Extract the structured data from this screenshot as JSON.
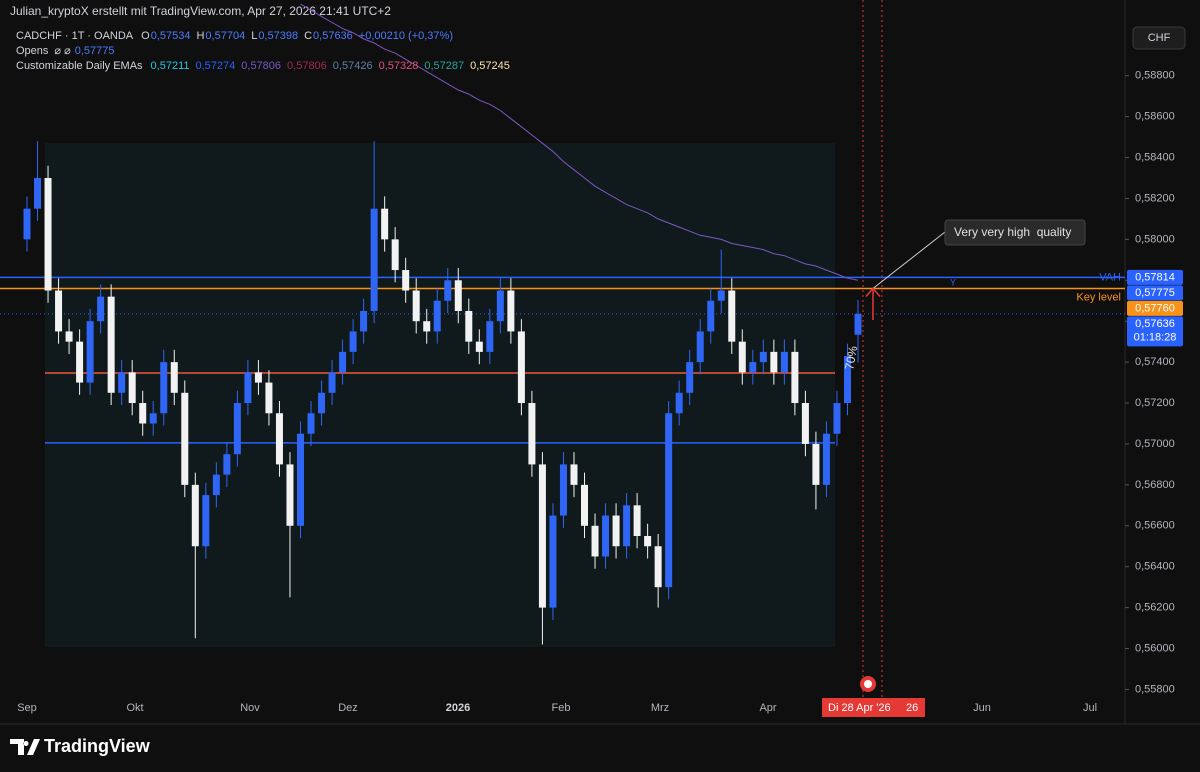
{
  "chart_data": {
    "type": "candlestick",
    "attribution": "Julian_kryptoX erstellt mit TradingView.com, Apr 27, 2026 21:41 UTC+2",
    "title": "CADCHF · 1T · OANDA",
    "ohlc_legend": [
      {
        "name": "O",
        "value": 0.57534,
        "label": "0,57534"
      },
      {
        "name": "H",
        "value": 0.57704,
        "label": "0,57704"
      },
      {
        "name": "L",
        "value": 0.57398,
        "label": "0,57398"
      },
      {
        "name": "C",
        "value": 0.57636,
        "label": "0,57636"
      }
    ],
    "change_label": "+0,00210 (+0,37%)",
    "opens_legend": {
      "name": "Opens",
      "symbol": "⌀ ⌀",
      "value": 0.57775,
      "label": "0,57775"
    },
    "ema_legend": {
      "name": "Customizable Daily EMAs",
      "items": [
        {
          "value": 0.57211,
          "label": "0,57211",
          "color": "#26c6da"
        },
        {
          "value": 0.57274,
          "label": "0,57274",
          "color": "#2962ff"
        },
        {
          "value": 0.57806,
          "label": "0,57806",
          "color": "#7e57c2"
        },
        {
          "value": 0.57806,
          "label": "0,57806",
          "color": "#a0284f"
        },
        {
          "value": 0.57426,
          "label": "0,57426",
          "color": "#5f7fa8"
        },
        {
          "value": 0.57328,
          "label": "0,57328",
          "color": "#e0557a"
        },
        {
          "value": 0.57287,
          "label": "0,57287",
          "color": "#26a69a"
        },
        {
          "value": 0.57245,
          "label": "0,57245",
          "color": "#ffe0b2"
        }
      ]
    },
    "currency_button": "CHF",
    "up_color": "#2f66f5",
    "down_color": "#f2f2f2",
    "open": [
      0.58,
      0.5815,
      0.583,
      0.5775,
      0.5755,
      0.575,
      0.573,
      0.576,
      0.5772,
      0.5725,
      0.5735,
      0.572,
      0.571,
      0.5715,
      0.574,
      0.5725,
      0.568,
      0.565,
      0.5675,
      0.5685,
      0.5695,
      0.572,
      0.5735,
      0.573,
      0.5715,
      0.569,
      0.566,
      0.5705,
      0.5715,
      0.5725,
      0.5735,
      0.5745,
      0.5755,
      0.5765,
      0.5815,
      0.58,
      0.5785,
      0.5775,
      0.576,
      0.5755,
      0.577,
      0.578,
      0.5765,
      0.575,
      0.5745,
      0.576,
      0.5775,
      0.5755,
      0.572,
      0.569,
      0.562,
      0.5665,
      0.569,
      0.568,
      0.566,
      0.5645,
      0.5665,
      0.565,
      0.567,
      0.5655,
      0.565,
      0.563,
      0.5715,
      0.5725,
      0.574,
      0.5755,
      0.577,
      0.5775,
      0.575,
      0.5735,
      0.574,
      0.5745,
      0.5735,
      0.5745,
      0.572,
      0.57,
      0.568,
      0.5705,
      0.572,
      0.57534
    ],
    "high": [
      0.5821,
      0.5848,
      0.5836,
      0.5781,
      0.5761,
      0.5756,
      0.5766,
      0.5778,
      0.5778,
      0.5741,
      0.5741,
      0.5726,
      0.5721,
      0.5746,
      0.5746,
      0.5731,
      0.5686,
      0.5681,
      0.5691,
      0.5701,
      0.5726,
      0.5741,
      0.5741,
      0.5736,
      0.5721,
      0.5696,
      0.5711,
      0.5721,
      0.5731,
      0.5741,
      0.5751,
      0.5761,
      0.5771,
      0.5848,
      0.5821,
      0.5806,
      0.5791,
      0.5781,
      0.5766,
      0.5776,
      0.5786,
      0.5786,
      0.5771,
      0.5756,
      0.5766,
      0.5781,
      0.5781,
      0.5761,
      0.5726,
      0.5696,
      0.5671,
      0.5696,
      0.5696,
      0.5686,
      0.5666,
      0.5671,
      0.5671,
      0.5676,
      0.5676,
      0.5661,
      0.5656,
      0.5721,
      0.5731,
      0.5746,
      0.5761,
      0.5776,
      0.5795,
      0.5781,
      0.5756,
      0.5746,
      0.5751,
      0.5751,
      0.5751,
      0.5751,
      0.5726,
      0.5706,
      0.5711,
      0.5726,
      0.5749,
      0.57704
    ],
    "low": [
      0.5794,
      0.5809,
      0.5769,
      0.5749,
      0.5744,
      0.5724,
      0.5724,
      0.5754,
      0.5719,
      0.5719,
      0.5714,
      0.5704,
      0.5704,
      0.5709,
      0.5719,
      0.5674,
      0.5605,
      0.5644,
      0.5669,
      0.5679,
      0.5689,
      0.5714,
      0.5724,
      0.5709,
      0.5684,
      0.5625,
      0.5654,
      0.5699,
      0.5709,
      0.5719,
      0.5729,
      0.5739,
      0.5749,
      0.5759,
      0.5794,
      0.5779,
      0.5769,
      0.5754,
      0.5749,
      0.5749,
      0.5764,
      0.5759,
      0.5744,
      0.5739,
      0.5739,
      0.5754,
      0.5749,
      0.5714,
      0.5684,
      0.5602,
      0.5614,
      0.5659,
      0.5674,
      0.5654,
      0.5639,
      0.5639,
      0.5644,
      0.5644,
      0.5649,
      0.5644,
      0.562,
      0.5624,
      0.5709,
      0.5719,
      0.5734,
      0.5749,
      0.5764,
      0.5744,
      0.5729,
      0.5729,
      0.5734,
      0.5729,
      0.5729,
      0.5714,
      0.5694,
      0.5668,
      0.5674,
      0.5699,
      0.5714,
      0.57398
    ],
    "close": [
      0.5815,
      0.583,
      0.5775,
      0.5755,
      0.575,
      0.573,
      0.576,
      0.5772,
      0.5725,
      0.5735,
      0.572,
      0.571,
      0.5715,
      0.574,
      0.5725,
      0.568,
      0.565,
      0.5675,
      0.5685,
      0.5695,
      0.572,
      0.5735,
      0.573,
      0.5715,
      0.569,
      0.566,
      0.5705,
      0.5715,
      0.5725,
      0.5735,
      0.5745,
      0.5755,
      0.5765,
      0.5815,
      0.58,
      0.5785,
      0.5775,
      0.576,
      0.5755,
      0.577,
      0.578,
      0.5765,
      0.575,
      0.5745,
      0.576,
      0.5775,
      0.5755,
      0.572,
      0.569,
      0.562,
      0.5665,
      0.569,
      0.568,
      0.566,
      0.5645,
      0.5665,
      0.565,
      0.567,
      0.5655,
      0.565,
      0.563,
      0.5715,
      0.5725,
      0.574,
      0.5755,
      0.577,
      0.5775,
      0.575,
      0.5735,
      0.574,
      0.5745,
      0.5735,
      0.5745,
      0.572,
      0.57,
      0.568,
      0.5705,
      0.572,
      0.5743,
      0.57636
    ],
    "ema": {
      "color": "#7e57c2",
      "values": [
        null,
        null,
        null,
        null,
        null,
        null,
        null,
        null,
        null,
        null,
        null,
        null,
        null,
        null,
        null,
        null,
        null,
        null,
        null,
        null,
        null,
        null,
        null,
        null,
        null,
        null,
        0.5915,
        0.5912,
        0.5909,
        0.5906,
        0.5903,
        0.5901,
        0.5898,
        0.5896,
        0.5893,
        0.5891,
        0.5888,
        0.5885,
        0.5882,
        0.5879,
        0.5876,
        0.5873,
        0.5871,
        0.5868,
        0.5866,
        0.5863,
        0.5859,
        0.5855,
        0.5851,
        0.5847,
        0.5843,
        0.5838,
        0.5834,
        0.583,
        0.5826,
        0.5823,
        0.582,
        0.5817,
        0.5815,
        0.5813,
        0.581,
        0.5808,
        0.5806,
        0.5804,
        0.5802,
        0.5801,
        0.58,
        0.5798,
        0.5797,
        0.5796,
        0.5795,
        0.5793,
        0.5792,
        0.579,
        0.5788,
        0.5787,
        0.5785,
        0.5783,
        0.5781,
        0.578
      ]
    },
    "x_axis_labels": [
      "Sep",
      "Okt",
      "Nov",
      "Dez",
      "2026",
      "Feb",
      "Mrz",
      "Apr",
      "Jun",
      "Jul"
    ],
    "ylim": [
      0.5568,
      0.5917
    ],
    "yticks": [
      {
        "value": 0.558,
        "label": "0,55800"
      },
      {
        "value": 0.56,
        "label": "0,56000"
      },
      {
        "value": 0.562,
        "label": "0,56200"
      },
      {
        "value": 0.564,
        "label": "0,56400"
      },
      {
        "value": 0.566,
        "label": "0,56600"
      },
      {
        "value": 0.568,
        "label": "0,56800"
      },
      {
        "value": 0.57,
        "label": "0,57000"
      },
      {
        "value": 0.572,
        "label": "0,57200"
      },
      {
        "value": 0.574,
        "label": "0,57400"
      },
      {
        "value": 0.576,
        "label": "0,57600"
      },
      {
        "value": 0.578,
        "label": "0,57800"
      },
      {
        "value": 0.58,
        "label": "0,58000"
      },
      {
        "value": 0.582,
        "label": "0,58200"
      },
      {
        "value": 0.584,
        "label": "0,58400"
      },
      {
        "value": 0.586,
        "label": "0,58600"
      },
      {
        "value": 0.588,
        "label": "0,58800"
      }
    ],
    "levels": [
      {
        "value": 0.57814,
        "color": "#2962ff",
        "name": "VAH"
      },
      {
        "value": 0.5776,
        "color": "#f7931a",
        "name": "Key level"
      },
      {
        "value": 0.57347,
        "color": "#f0553c"
      },
      {
        "value": 0.57005,
        "color": "#2962ff"
      }
    ],
    "price_tags": [
      {
        "value": 0.57814,
        "label": "0,57814",
        "color": "#2962ff"
      },
      {
        "value": 0.57775,
        "label": "0,57775",
        "color": "#2962ff"
      },
      {
        "value": 0.5776,
        "label": "0,57760",
        "color": "#f7931a"
      },
      {
        "value": 0.57636,
        "label": "0,57636",
        "color": "#2962ff",
        "countdown": "01:18:28"
      }
    ],
    "annotation": "Very very high  quality",
    "percent_label": "70%",
    "marker_label": "Y",
    "cursor_date": "Di 28 Apr '26",
    "cursor_extra": "26",
    "brand": "TradingView"
  }
}
